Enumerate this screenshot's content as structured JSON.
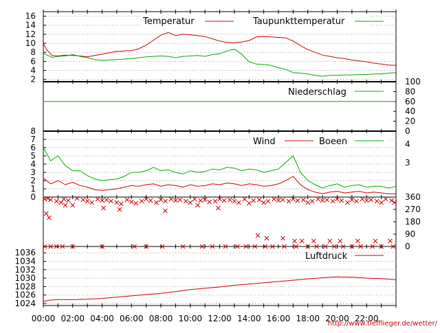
{
  "chart_data": [
    {
      "type": "line",
      "title": "",
      "legend": "top-right",
      "grid": true,
      "ylim": [
        1.5,
        17
      ],
      "y_ticks": [
        "16",
        "14",
        "12",
        "10",
        "8",
        "6",
        "4",
        "2"
      ],
      "series": [
        {
          "name": "Temperatur",
          "color": "#cc0000",
          "x": [
            0,
            0.25,
            0.6,
            1,
            1.5,
            2,
            2.5,
            3,
            3.5,
            4,
            4.5,
            5,
            5.5,
            6,
            6.5,
            7,
            7.5,
            8,
            8.5,
            9,
            9.5,
            10,
            10.5,
            11,
            11.5,
            12,
            12.5,
            13,
            13.5,
            14,
            14.5,
            15,
            15.5,
            16,
            16.5,
            17,
            17.5,
            18,
            18.5,
            19,
            19.5,
            20,
            20.5,
            21,
            21.5,
            22,
            22.5,
            23,
            23.5,
            24
          ],
          "values": [
            10,
            8.5,
            7.3,
            7.2,
            7.4,
            7.3,
            7.2,
            7,
            7.3,
            7.6,
            7.9,
            8.2,
            8.3,
            8.4,
            8.8,
            9.6,
            10.7,
            11.8,
            12.4,
            11.7,
            12,
            11.9,
            11.7,
            11.5,
            11,
            10.5,
            10.2,
            10.1,
            10.3,
            10.6,
            11.4,
            11.5,
            11.4,
            11.3,
            11.2,
            10.5,
            9.5,
            8.6,
            8,
            7.4,
            7.1,
            6.8,
            6.6,
            6.3,
            6.1,
            5.9,
            5.6,
            5.4,
            5.2,
            5.1
          ]
        },
        {
          "name": "Taupunkttemperatur",
          "color": "#00aa00",
          "x": [
            0,
            0.25,
            0.6,
            1,
            1.5,
            2,
            2.5,
            3,
            3.5,
            4,
            4.5,
            5,
            5.5,
            6,
            6.5,
            7,
            7.5,
            8,
            8.5,
            9,
            9.5,
            10,
            10.5,
            11,
            11.5,
            12,
            12.5,
            13,
            13.5,
            14,
            14.5,
            15,
            15.5,
            16,
            16.5,
            17,
            17.5,
            18,
            18.5,
            19,
            19.5,
            20,
            20.5,
            21,
            21.5,
            22,
            22.5,
            23,
            23.5,
            24
          ],
          "values": [
            7.8,
            7.4,
            6.9,
            7.1,
            7.2,
            7.5,
            7.1,
            6.8,
            6.4,
            6.2,
            6.3,
            6.4,
            6.5,
            6.6,
            6.8,
            7,
            7.1,
            7.2,
            7.1,
            6.8,
            7.1,
            7.2,
            7.3,
            7.1,
            7.5,
            7.7,
            8.3,
            8.7,
            7.6,
            5.9,
            5.4,
            5.3,
            5.1,
            4.6,
            4.2,
            3.5,
            3.4,
            3.2,
            2.9,
            2.7,
            2.9,
            2.9,
            3,
            3,
            3.1,
            3.1,
            3.2,
            3.2,
            3.4,
            3.5
          ]
        }
      ]
    },
    {
      "type": "line",
      "title": "",
      "legend": "top-right",
      "grid": false,
      "ylim": [
        0,
        100
      ],
      "y_ticks": [
        "100",
        "80",
        "60",
        "40",
        "20",
        "0"
      ],
      "series": [
        {
          "name": "Niederschlag",
          "color": "#00aa00",
          "x": [
            0,
            24
          ],
          "values": [
            60,
            60
          ]
        }
      ]
    },
    {
      "type": "line",
      "title": "",
      "legend": "top-right",
      "grid": true,
      "ylim": [
        0,
        8
      ],
      "y_ticks": [
        "8",
        "7",
        "6",
        "5",
        "4",
        "3",
        "2",
        "1",
        "0"
      ],
      "y2_ticks": [
        "4",
        "3"
      ],
      "series": [
        {
          "name": "Wind",
          "color": "#cc0000",
          "x": [
            0,
            0.5,
            1,
            1.5,
            2,
            2.5,
            3,
            3.5,
            4,
            4.5,
            5,
            5.5,
            6,
            6.5,
            7,
            7.5,
            8,
            8.5,
            9,
            9.5,
            10,
            10.5,
            11,
            11.5,
            12,
            12.5,
            13,
            13.5,
            14,
            14.5,
            15,
            15.5,
            16,
            16.5,
            17,
            17.5,
            18,
            18.5,
            19,
            19.5,
            20,
            20.5,
            21,
            21.5,
            22,
            22.5,
            23,
            23.5,
            24
          ],
          "values": [
            2.3,
            1.6,
            2,
            1.5,
            1.8,
            1.4,
            1.2,
            0.9,
            0.8,
            0.9,
            1,
            1.2,
            1.4,
            1.3,
            1.5,
            1.6,
            1.3,
            1.5,
            1.4,
            1.2,
            1.5,
            1.3,
            1.4,
            1.6,
            1.5,
            1.7,
            1.6,
            1.4,
            1.6,
            1.5,
            1.3,
            1.4,
            1.6,
            2,
            2.5,
            1.5,
            0.9,
            0.6,
            0.4,
            0.6,
            0.7,
            0.5,
            0.6,
            0.7,
            0.5,
            0.6,
            0.5,
            0.4,
            0.4
          ]
        },
        {
          "name": "Boeen",
          "color": "#00aa00",
          "x": [
            0,
            0.5,
            1,
            1.5,
            2,
            2.5,
            3,
            3.5,
            4,
            4.5,
            5,
            5.5,
            6,
            6.5,
            7,
            7.5,
            8,
            8.5,
            9,
            9.5,
            10,
            10.5,
            11,
            11.5,
            12,
            12.5,
            13,
            13.5,
            14,
            14.5,
            15,
            15.5,
            16,
            16.5,
            17,
            17.5,
            18,
            18.5,
            19,
            19.5,
            20,
            20.5,
            21,
            21.5,
            22,
            22.5,
            23,
            23.5,
            24
          ],
          "values": [
            6,
            4.4,
            5,
            3.8,
            3.2,
            3.2,
            2.6,
            2.2,
            2,
            2.1,
            2.2,
            2.5,
            3,
            3,
            3.2,
            3.6,
            3.2,
            3.3,
            3,
            2.8,
            3.2,
            3,
            3.1,
            3.4,
            3.3,
            3.6,
            3.5,
            3.2,
            3.4,
            3.3,
            3,
            3.2,
            3.4,
            4.2,
            5,
            3,
            2,
            1.5,
            1.1,
            1.4,
            1.6,
            1.2,
            1.4,
            1.5,
            1.2,
            1.3,
            1.3,
            1.1,
            1.3
          ]
        }
      ]
    },
    {
      "type": "scatter",
      "title": "",
      "grid": false,
      "ylim": [
        0,
        360
      ],
      "y2_ticks": [
        "360",
        "270",
        "180",
        "90",
        "0"
      ],
      "series": [
        {
          "name": "",
          "color": "#cc0000",
          "x": [
            0.1,
            0.3,
            0.5,
            0.9,
            1.2,
            1.4,
            1.7,
            2,
            2.3,
            2.7,
            3,
            3.3,
            3.7,
            4,
            4.3,
            4.6,
            5,
            5.3,
            5.7,
            6,
            6.3,
            6.7,
            7,
            7.3,
            7.7,
            8,
            8.3,
            8.7,
            9,
            9.3,
            9.7,
            10,
            10.3,
            10.7,
            11,
            11.3,
            11.7,
            12,
            12.3,
            12.7,
            13,
            13.3,
            13.7,
            14,
            14.3,
            14.7,
            15,
            15.3,
            15.7,
            16,
            16.3,
            16.7,
            17,
            17.3,
            17.7,
            18,
            18.3,
            18.7,
            19,
            19.3,
            19.7,
            20,
            20.3,
            20.7,
            21,
            21.3,
            21.7,
            22,
            22.3,
            22.7,
            23,
            23.3,
            23.7,
            23.9,
            0.2,
            0.4,
            1.5,
            4.1,
            5.2,
            8.3,
            10.5,
            11.9,
            14.6,
            15.2,
            16.3,
            17.1,
            17.6,
            18.4,
            19.5,
            20.2,
            21.4,
            22.6,
            23.6,
            0.1,
            0.5,
            0.9,
            1.3,
            2,
            4,
            6.2,
            7,
            8.1,
            9.5,
            10.8,
            11.5,
            12.4,
            13.2,
            13.8,
            14.4,
            15.1,
            15.6,
            16.4,
            17.2,
            18,
            18.6,
            19.2,
            19.8,
            20.4,
            21,
            21.6,
            22.4,
            23,
            23.8
          ],
          "values": [
            345,
            350,
            340,
            330,
            320,
            345,
            335,
            300,
            350,
            340,
            330,
            320,
            345,
            335,
            340,
            330,
            320,
            310,
            340,
            325,
            315,
            330,
            345,
            335,
            320,
            340,
            330,
            345,
            335,
            340,
            330,
            320,
            345,
            335,
            340,
            325,
            330,
            345,
            335,
            340,
            330,
            320,
            345,
            315,
            335,
            340,
            320,
            330,
            345,
            335,
            340,
            330,
            345,
            335,
            340,
            320,
            330,
            345,
            335,
            340,
            330,
            345,
            335,
            320,
            340,
            330,
            345,
            335,
            340,
            330,
            320,
            345,
            335,
            320,
            240,
            210,
            300,
            280,
            270,
            260,
            300,
            280,
            80,
            60,
            60,
            40,
            40,
            40,
            40,
            40,
            40,
            40,
            40,
            0,
            0,
            0,
            0,
            0,
            0,
            0,
            0,
            0,
            0,
            0,
            0,
            0,
            0,
            0,
            0,
            0,
            0,
            0,
            0,
            0,
            0,
            0,
            0,
            0,
            0,
            0,
            0,
            0,
            0
          ]
        }
      ]
    },
    {
      "type": "line",
      "title": "",
      "legend": "top-right",
      "grid": true,
      "ylim": [
        1023.5,
        1037.5
      ],
      "y_ticks": [
        "1036",
        "1034",
        "1032",
        "1030",
        "1028",
        "1026",
        "1024"
      ],
      "series": [
        {
          "name": "Luftdruck",
          "color": "#cc0000",
          "x": [
            0,
            0.5,
            1,
            2,
            3,
            4,
            5,
            6,
            7,
            8,
            9,
            10,
            11,
            12,
            13,
            14,
            15,
            16,
            17,
            18,
            19,
            20,
            21,
            22,
            23,
            24
          ],
          "values": [
            1024.5,
            1024.8,
            1024.9,
            1024.9,
            1025,
            1025.2,
            1025.5,
            1025.8,
            1026.1,
            1026.4,
            1026.8,
            1027.3,
            1027.6,
            1027.9,
            1028.3,
            1028.6,
            1028.9,
            1029.2,
            1029.5,
            1029.8,
            1030.1,
            1030.3,
            1030.2,
            1030,
            1029.9,
            1029.6
          ]
        }
      ]
    }
  ],
  "x_axis": {
    "labels": [
      "00:00",
      "02:00",
      "04:00",
      "06:00",
      "08:00",
      "10:00",
      "12:00",
      "14:00",
      "16:00",
      "18:00",
      "20:00",
      "22:00"
    ],
    "range_hours": [
      0,
      24
    ]
  },
  "footer": {
    "url": "http://www.tiefflieger.de/wetter/"
  },
  "colors": {
    "red_series": "#cc0000",
    "green_series": "#00aa00",
    "grid": "#999999"
  }
}
